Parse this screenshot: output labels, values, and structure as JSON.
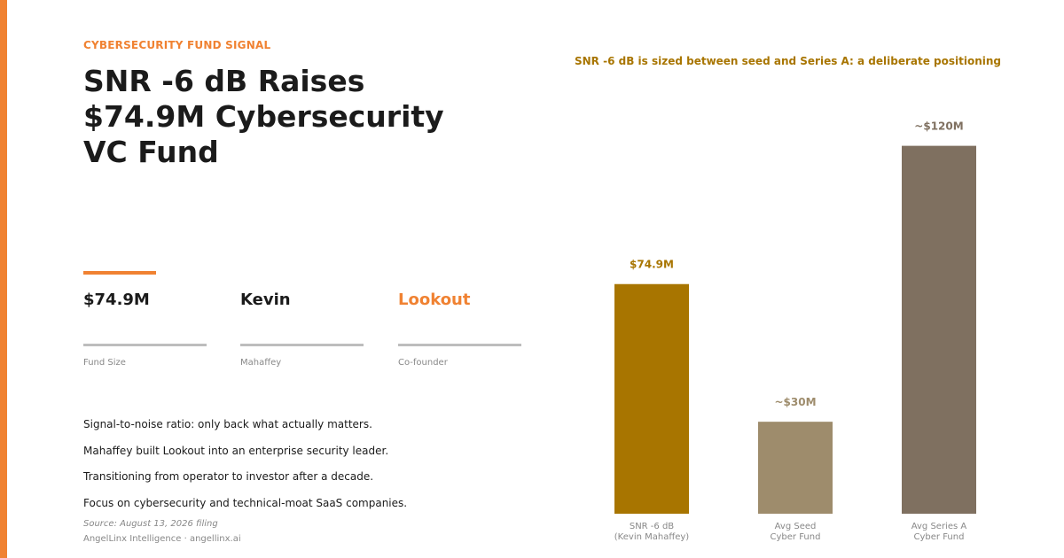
{
  "eyebrow": "CYBERSECURITY FUND SIGNAL",
  "headline": [
    "SNR -6 dB Raises",
    "$74.9M Cybersecurity",
    "VC Fund"
  ],
  "stats": [
    {
      "value": "$74.9M",
      "label": "Fund Size"
    },
    {
      "value": "Kevin",
      "label": "Mahaffey"
    },
    {
      "value": "Lookout",
      "label": "Co-founder"
    }
  ],
  "bullets": [
    "Signal-to-noise ratio: only back what actually matters.",
    "Mahaffey built Lookout into an enterprise security leader.",
    "Transitioning from operator to investor after a decade.",
    "Focus on cybersecurity and technical-moat SaaS companies."
  ],
  "source": "Source: August 13, 2026 filing",
  "footer": "AngelLinx Intelligence  ·  angellinx.ai",
  "colors": {
    "accent": "#f08232",
    "title_gold": "#a87500",
    "bar_snr": "#a87500",
    "bar_seed": "#9e8c6c",
    "bar_series_a": "#7f7060"
  },
  "chart_data": {
    "type": "bar",
    "title": "SNR -6 dB is sized between seed and Series A: a deliberate positioning",
    "categories": [
      [
        "SNR -6 dB",
        "(Kevin Mahaffey)"
      ],
      [
        "Avg Seed",
        "Cyber Fund"
      ],
      [
        "Avg Series A",
        "Cyber Fund"
      ]
    ],
    "values": [
      74.9,
      30,
      120
    ],
    "value_labels": [
      "$74.9M",
      "~$30M",
      "~$120M"
    ],
    "unit": "$M",
    "ylim": [
      0,
      130
    ],
    "grid": false,
    "axes_visible": false
  }
}
